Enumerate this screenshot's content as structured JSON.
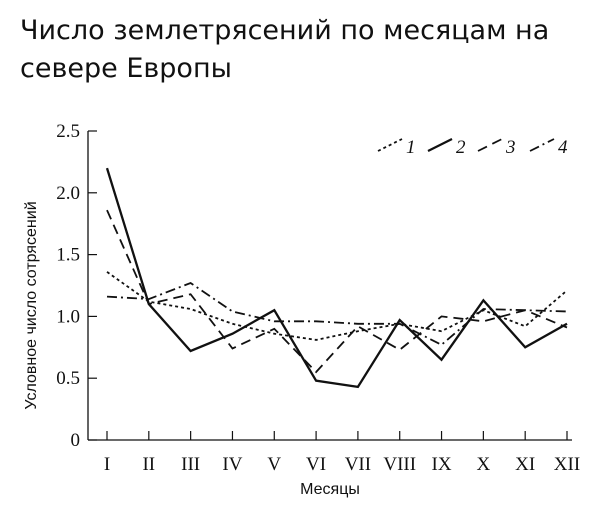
{
  "chart_data": {
    "type": "line",
    "title": "Число землетрясений по месяцам на севере Европы",
    "xlabel": "Месяцы",
    "ylabel": "Условное число сотрясений",
    "categories": [
      "I",
      "II",
      "III",
      "IV",
      "V",
      "VI",
      "VII",
      "VIII",
      "IX",
      "X",
      "XI",
      "XII"
    ],
    "ylim": [
      0,
      2.5
    ],
    "yticks": [
      "0",
      "0.5",
      "1.0",
      "1.5",
      "2.0",
      "2.5"
    ],
    "grid": false,
    "legend_position": "top-right",
    "series": [
      {
        "name": "1",
        "style": "dotted",
        "values": [
          1.36,
          1.12,
          1.06,
          0.94,
          0.86,
          0.81,
          0.88,
          0.94,
          0.88,
          1.05,
          0.92,
          1.21
        ]
      },
      {
        "name": "2",
        "style": "solid",
        "values": [
          2.2,
          1.1,
          0.72,
          0.86,
          1.05,
          0.48,
          0.43,
          0.97,
          0.65,
          1.13,
          0.75,
          0.94
        ]
      },
      {
        "name": "3",
        "style": "dashed",
        "values": [
          1.86,
          1.1,
          1.18,
          0.74,
          0.9,
          0.55,
          0.92,
          0.73,
          1.0,
          0.96,
          1.05,
          0.91
        ]
      },
      {
        "name": "4",
        "style": "dashdot",
        "values": [
          1.16,
          1.14,
          1.27,
          1.04,
          0.96,
          0.96,
          0.94,
          0.94,
          0.77,
          1.06,
          1.05,
          1.04
        ]
      }
    ]
  }
}
